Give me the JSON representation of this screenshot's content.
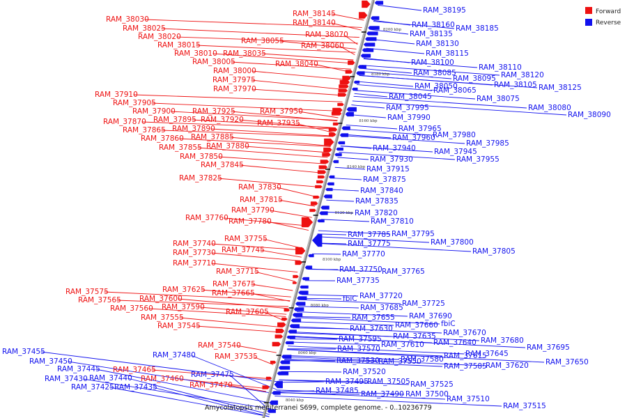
{
  "caption": "Amycolatopsis mediterranei S699, complete genome. - 0..10236779",
  "legend": [
    {
      "label": "Forward",
      "color": "#ee1111"
    },
    {
      "label": "Reverse",
      "color": "#1111ee"
    }
  ],
  "colors": {
    "forward": "#ee1111",
    "reverse": "#1111ee",
    "backbone": "#888888"
  },
  "ticks": [
    "8200 kbp",
    "8180 kbp",
    "8160 kbp",
    "8140 kbp",
    "8120 kbp",
    "8100 kbp",
    "8080 kbp",
    "8060 kbp",
    "8040 kbp"
  ],
  "forward_labels": [
    "RAM_38145",
    "RAM_38140",
    "RAM_38030",
    "RAM_38025",
    "RAM_38070",
    "RAM_38020",
    "RAM_38015",
    "RAM_38055",
    "RAM_38060",
    "RAM_38010",
    "RAM_38035",
    "RAM_38005",
    "RAM_38040",
    "RAM_38000",
    "RAM_37975",
    "RAM_37970",
    "RAM_37910",
    "RAM_37905",
    "RAM_37900",
    "RAM_37925",
    "RAM_37950",
    "RAM_37870",
    "RAM_37895",
    "RAM_37920",
    "RAM_37935",
    "RAM_37865",
    "RAM_37890",
    "RAM_37860",
    "RAM_37885",
    "RAM_37855",
    "RAM_37880",
    "RAM_37850",
    "RAM_37845",
    "RAM_37825",
    "RAM_37830",
    "RAM_37815",
    "RAM_37790",
    "RAM_37760",
    "RAM_37780",
    "RAM_37755",
    "RAM_37740",
    "RAM_37745",
    "RAM_37730",
    "RAM_37710",
    "RAM_37715",
    "RAM_37675",
    "RAM_37625",
    "RAM_37665",
    "RAM_37575",
    "RAM_37600",
    "RAM_37565",
    "RAM_37590",
    "RAM_37560",
    "RAM_37605",
    "RAM_37555",
    "RAM_37545",
    "RAM_37540",
    "RAM_37535",
    "RAM_37465",
    "RAM_37460",
    "RAM_37470"
  ],
  "reverse_labels": [
    "RAM_38195",
    "RAM_38160",
    "RAM_38185",
    "RAM_38135",
    "RAM_38130",
    "RAM_38115",
    "RAM_38100",
    "RAM_38110",
    "RAM_38085",
    "RAM_38120",
    "RAM_38095",
    "RAM_38105",
    "RAM_38125",
    "RAM_38050",
    "RAM_38065",
    "RAM_38045",
    "RAM_38075",
    "RAM_38080",
    "RAM_38090",
    "RAM_37995",
    "RAM_37990",
    "RAM_37965",
    "RAM_37980",
    "RAM_37960",
    "RAM_37985",
    "RAM_37940",
    "RAM_37945",
    "RAM_37930",
    "RAM_37955",
    "RAM_37915",
    "RAM_37875",
    "RAM_37840",
    "RAM_37835",
    "RAM_37820",
    "RAM_37810",
    "RAM_37785",
    "RAM_37795",
    "RAM_37775",
    "RAM_37800",
    "RAM_37770",
    "RAM_37805",
    "RAM_37750",
    "RAM_37765",
    "RAM_37735",
    "RAM_37720",
    "fbiC",
    "RAM_37725",
    "RAM_37685",
    "RAM_37690",
    "RAM_37655",
    "RAM_37660",
    "fbiC",
    "RAM_37630",
    "RAM_37670",
    "RAM_37635",
    "RAM_37680",
    "RAM_37595",
    "RAM_37640",
    "RAM_37610",
    "RAM_37695",
    "RAM_37570",
    "RAM_37645",
    "RAM_37580",
    "RAM_37615",
    "RAM_37650",
    "RAM_37530",
    "RAM_37550",
    "RAM_37585",
    "RAM_37620",
    "RAM_37520",
    "RAM_37525",
    "RAM_37495",
    "RAM_37505",
    "RAM_37485",
    "RAM_37490",
    "RAM_37500",
    "RAM_37510",
    "RAM_37515",
    "RAM_37480",
    "RAM_37475",
    "RAM_37455",
    "RAM_37450",
    "RAM_37445",
    "RAM_37440",
    "RAM_37430",
    "RAM_37425",
    "RAM_37435"
  ]
}
